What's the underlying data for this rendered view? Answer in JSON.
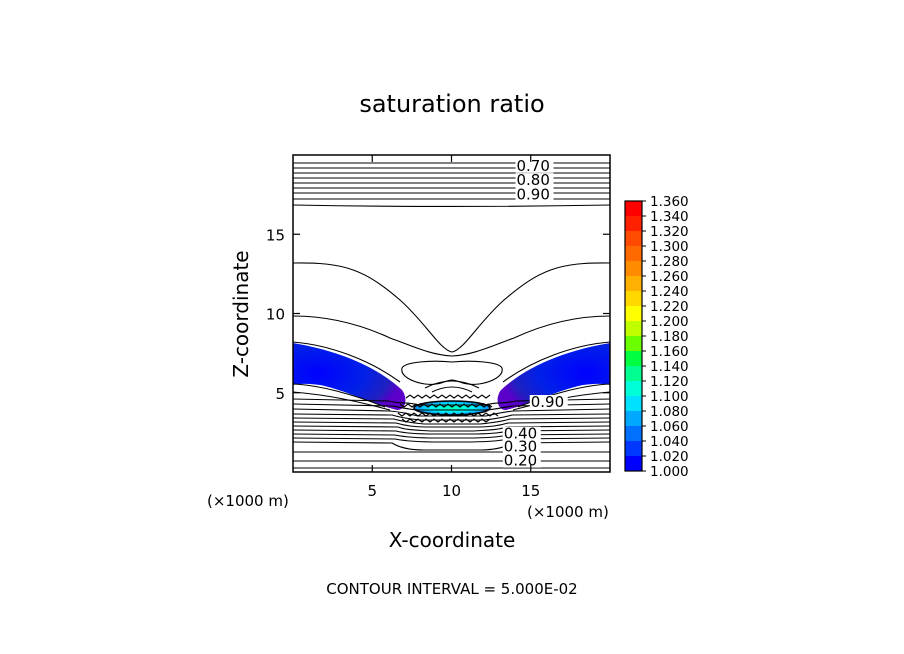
{
  "chart_data": {
    "type": "contour",
    "title": "saturation ratio",
    "xlabel": "X-coordinate",
    "ylabel": "Z-coordinate",
    "x_unit_label": "(×1000 m)",
    "z_unit_label": "(×1000 m)",
    "xlim": [
      0,
      20
    ],
    "ylim": [
      0,
      20
    ],
    "x_ticks": [
      5,
      10,
      15
    ],
    "y_ticks": [
      5,
      10,
      15
    ],
    "x_tick_labels": [
      "5",
      "10",
      "15"
    ],
    "y_tick_labels": [
      "5",
      "10",
      "15"
    ],
    "contour_interval_text": "CONTOUR INTERVAL = 5.000E-02",
    "contour_labels": [
      {
        "text": "0.70",
        "x": 14.1,
        "z": 19.0
      },
      {
        "text": "0.80",
        "x": 14.1,
        "z": 18.1
      },
      {
        "text": "0.90",
        "x": 14.1,
        "z": 17.2
      },
      {
        "text": "0.90",
        "x": 15.0,
        "z": 4.1
      },
      {
        "text": "0.40",
        "x": 13.3,
        "z": 2.1
      },
      {
        "text": "0.30",
        "x": 13.3,
        "z": 1.3
      },
      {
        "text": "0.20",
        "x": 13.3,
        "z": 0.4
      }
    ],
    "shaded_regions": [
      {
        "region": "left lobe",
        "x_range": [
          0,
          8.3
        ],
        "z_range": [
          4.0,
          8.2
        ],
        "max_value": 1.04
      },
      {
        "region": "right lobe",
        "x_range": [
          12.7,
          20
        ],
        "z_range": [
          4.0,
          8.2
        ],
        "max_value": 1.04
      },
      {
        "region": "center core",
        "x_range": [
          7.6,
          12.4
        ],
        "z_range": [
          3.7,
          4.4
        ],
        "max_value": 1.12
      }
    ],
    "colorbar": {
      "min": 1.0,
      "max": 1.36,
      "step": 0.02,
      "labels": [
        "1.360",
        "1.340",
        "1.320",
        "1.300",
        "1.280",
        "1.260",
        "1.240",
        "1.220",
        "1.200",
        "1.180",
        "1.160",
        "1.140",
        "1.120",
        "1.100",
        "1.080",
        "1.060",
        "1.040",
        "1.020",
        "1.000"
      ],
      "colors": [
        "#ff0000",
        "#ff2000",
        "#ff4a00",
        "#ff6a00",
        "#ff8c00",
        "#ffb000",
        "#ffd800",
        "#ffff00",
        "#c0ff00",
        "#6cff00",
        "#00ff40",
        "#00ff90",
        "#00ffd8",
        "#00e0ff",
        "#00a8ff",
        "#0070ff",
        "#0038ff",
        "#0000ff",
        "#6000d0"
      ]
    }
  }
}
